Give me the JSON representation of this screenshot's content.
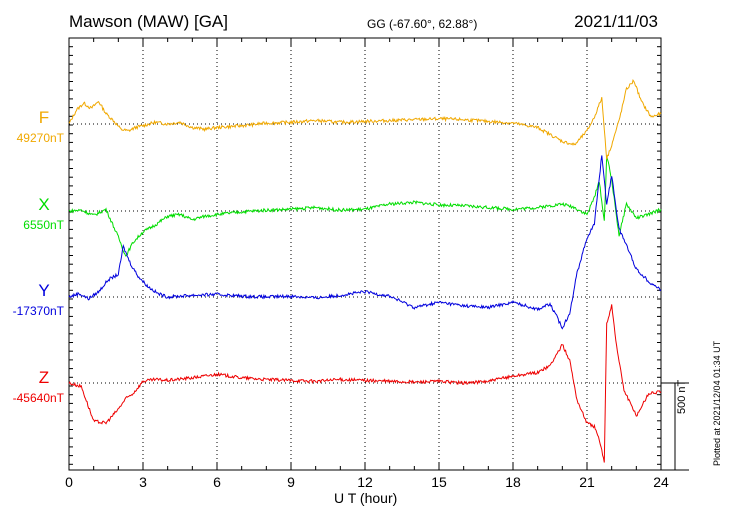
{
  "header": {
    "station": "Mawson (MAW)  [GA]",
    "coords": "GG (-67.60°,  62.88°)",
    "date": "2021/11/03"
  },
  "colors": {
    "F": "#f0a800",
    "X": "#00dd00",
    "Y": "#0000dd",
    "Z": "#ee0000"
  },
  "components": [
    {
      "key": "F",
      "label": "F",
      "baseline": "49270nT"
    },
    {
      "key": "X",
      "label": "X",
      "baseline": "6550nT"
    },
    {
      "key": "Y",
      "label": "Y",
      "baseline": "-17370nT"
    },
    {
      "key": "Z",
      "label": "Z",
      "baseline": "-45640nT"
    }
  ],
  "scale_label": "500 nT",
  "plotted": "Plotted at 2021/12/04 01:34 UT",
  "chart_data": {
    "type": "line",
    "xlabel": "U T (hour)",
    "xlim": [
      0,
      24
    ],
    "xticks": [
      "0",
      "3",
      "6",
      "9",
      "12",
      "15",
      "18",
      "21",
      "24"
    ],
    "scale_bar_nT": 500,
    "series": [
      {
        "name": "F",
        "baseline_nT": 49270,
        "points": [
          [
            0,
            0
          ],
          [
            0.3,
            80
          ],
          [
            0.6,
            120
          ],
          [
            0.9,
            90
          ],
          [
            1.2,
            130
          ],
          [
            1.5,
            60
          ],
          [
            1.8,
            20
          ],
          [
            2.1,
            -30
          ],
          [
            2.4,
            -40
          ],
          [
            2.7,
            -20
          ],
          [
            3,
            -10
          ],
          [
            3.5,
            10
          ],
          [
            4,
            0
          ],
          [
            4.5,
            10
          ],
          [
            5,
            -20
          ],
          [
            5.5,
            -30
          ],
          [
            6,
            -20
          ],
          [
            7,
            -10
          ],
          [
            8,
            5
          ],
          [
            9,
            10
          ],
          [
            10,
            20
          ],
          [
            11,
            10
          ],
          [
            12,
            15
          ],
          [
            13,
            20
          ],
          [
            14,
            25
          ],
          [
            15,
            30
          ],
          [
            16,
            25
          ],
          [
            17,
            15
          ],
          [
            18,
            5
          ],
          [
            19,
            -20
          ],
          [
            19.5,
            -60
          ],
          [
            20,
            -100
          ],
          [
            20.5,
            -120
          ],
          [
            21,
            -40
          ],
          [
            21.3,
            40
          ],
          [
            21.6,
            150
          ],
          [
            21.8,
            -200
          ],
          [
            22,
            -120
          ],
          [
            22.3,
            20
          ],
          [
            22.6,
            200
          ],
          [
            22.9,
            250
          ],
          [
            23.2,
            130
          ],
          [
            23.6,
            40
          ],
          [
            24,
            60
          ]
        ]
      },
      {
        "name": "X",
        "baseline_nT": 6550,
        "points": [
          [
            0,
            0
          ],
          [
            0.5,
            5
          ],
          [
            1,
            -25
          ],
          [
            1.5,
            10
          ],
          [
            2,
            -150
          ],
          [
            2.3,
            -260
          ],
          [
            2.6,
            -180
          ],
          [
            3,
            -120
          ],
          [
            3.5,
            -80
          ],
          [
            4,
            -30
          ],
          [
            4.5,
            -20
          ],
          [
            5,
            -50
          ],
          [
            5.5,
            -30
          ],
          [
            6,
            -20
          ],
          [
            7,
            -5
          ],
          [
            8,
            5
          ],
          [
            9,
            10
          ],
          [
            10,
            20
          ],
          [
            11,
            5
          ],
          [
            12,
            10
          ],
          [
            13,
            40
          ],
          [
            14,
            50
          ],
          [
            15,
            35
          ],
          [
            16,
            30
          ],
          [
            17,
            20
          ],
          [
            18,
            10
          ],
          [
            19,
            20
          ],
          [
            20,
            40
          ],
          [
            20.5,
            20
          ],
          [
            21,
            -20
          ],
          [
            21.3,
            80
          ],
          [
            21.5,
            170
          ],
          [
            21.7,
            -60
          ],
          [
            21.8,
            320
          ],
          [
            22,
            180
          ],
          [
            22.3,
            -140
          ],
          [
            22.6,
            40
          ],
          [
            23,
            -40
          ],
          [
            23.5,
            -20
          ],
          [
            24,
            10
          ]
        ]
      },
      {
        "name": "Y",
        "baseline_nT": -17370,
        "points": [
          [
            0,
            0
          ],
          [
            0.4,
            20
          ],
          [
            0.8,
            -10
          ],
          [
            1.2,
            30
          ],
          [
            1.6,
            100
          ],
          [
            2,
            130
          ],
          [
            2.2,
            290
          ],
          [
            2.5,
            190
          ],
          [
            2.8,
            120
          ],
          [
            3.2,
            60
          ],
          [
            3.6,
            20
          ],
          [
            4,
            0
          ],
          [
            5,
            10
          ],
          [
            6,
            15
          ],
          [
            7,
            5
          ],
          [
            8,
            0
          ],
          [
            9,
            5
          ],
          [
            10,
            -5
          ],
          [
            11,
            10
          ],
          [
            12,
            30
          ],
          [
            13,
            5
          ],
          [
            14,
            -60
          ],
          [
            15,
            -30
          ],
          [
            16,
            -50
          ],
          [
            17,
            -60
          ],
          [
            18,
            -30
          ],
          [
            19,
            -70
          ],
          [
            19.5,
            -40
          ],
          [
            19.8,
            -120
          ],
          [
            20,
            -180
          ],
          [
            20.3,
            -90
          ],
          [
            20.6,
            140
          ],
          [
            21,
            340
          ],
          [
            21.3,
            420
          ],
          [
            21.6,
            820
          ],
          [
            21.8,
            530
          ],
          [
            22,
            700
          ],
          [
            22.3,
            390
          ],
          [
            22.6,
            300
          ],
          [
            23,
            160
          ],
          [
            23.5,
            90
          ],
          [
            24,
            40
          ]
        ]
      },
      {
        "name": "Z",
        "baseline_nT": -45640,
        "points": [
          [
            0,
            0
          ],
          [
            0.5,
            -20
          ],
          [
            1,
            -220
          ],
          [
            1.5,
            -230
          ],
          [
            2,
            -150
          ],
          [
            2.3,
            -90
          ],
          [
            2.6,
            -60
          ],
          [
            3,
            10
          ],
          [
            3.5,
            20
          ],
          [
            4,
            15
          ],
          [
            5,
            30
          ],
          [
            6,
            50
          ],
          [
            7,
            30
          ],
          [
            8,
            20
          ],
          [
            9,
            15
          ],
          [
            10,
            10
          ],
          [
            11,
            20
          ],
          [
            12,
            15
          ],
          [
            13,
            10
          ],
          [
            14,
            5
          ],
          [
            15,
            10
          ],
          [
            16,
            0
          ],
          [
            17,
            10
          ],
          [
            18,
            40
          ],
          [
            19,
            60
          ],
          [
            19.5,
            100
          ],
          [
            20,
            220
          ],
          [
            20.3,
            130
          ],
          [
            20.6,
            -100
          ],
          [
            21,
            -230
          ],
          [
            21.3,
            -250
          ],
          [
            21.5,
            -330
          ],
          [
            21.7,
            -450
          ],
          [
            21.8,
            340
          ],
          [
            22,
            450
          ],
          [
            22.2,
            210
          ],
          [
            22.5,
            -40
          ],
          [
            23,
            -190
          ],
          [
            23.5,
            -60
          ],
          [
            24,
            -50
          ]
        ]
      }
    ]
  }
}
